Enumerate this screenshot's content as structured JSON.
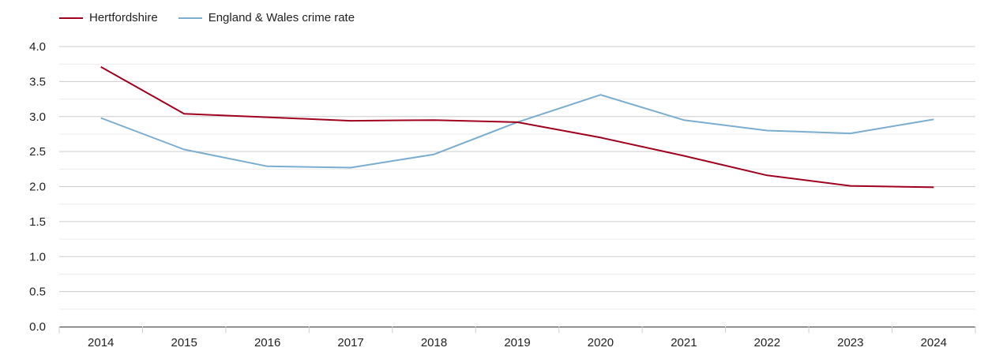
{
  "chart_data": {
    "type": "line",
    "title": "",
    "xlabel": "",
    "ylabel": "",
    "x": [
      "2014",
      "2015",
      "2016",
      "2017",
      "2018",
      "2019",
      "2020",
      "2021",
      "2022",
      "2023",
      "2024"
    ],
    "ylim": [
      0,
      4
    ],
    "yticks": [
      "0.0",
      "0.5",
      "1.0",
      "1.5",
      "2.0",
      "2.5",
      "3.0",
      "3.5",
      "4.0"
    ],
    "grid": true,
    "legend_position": "top-left",
    "series": [
      {
        "name": "Hertfordshire",
        "color": "#a0001e",
        "values": [
          3.71,
          3.04,
          2.99,
          2.94,
          2.95,
          2.92,
          2.7,
          2.44,
          2.16,
          2.01,
          1.99
        ]
      },
      {
        "name": "England & Wales crime rate",
        "color": "#7aadd0",
        "values": [
          2.98,
          2.53,
          2.29,
          2.27,
          2.46,
          2.92,
          3.31,
          2.95,
          2.8,
          2.76,
          2.96
        ]
      }
    ]
  }
}
